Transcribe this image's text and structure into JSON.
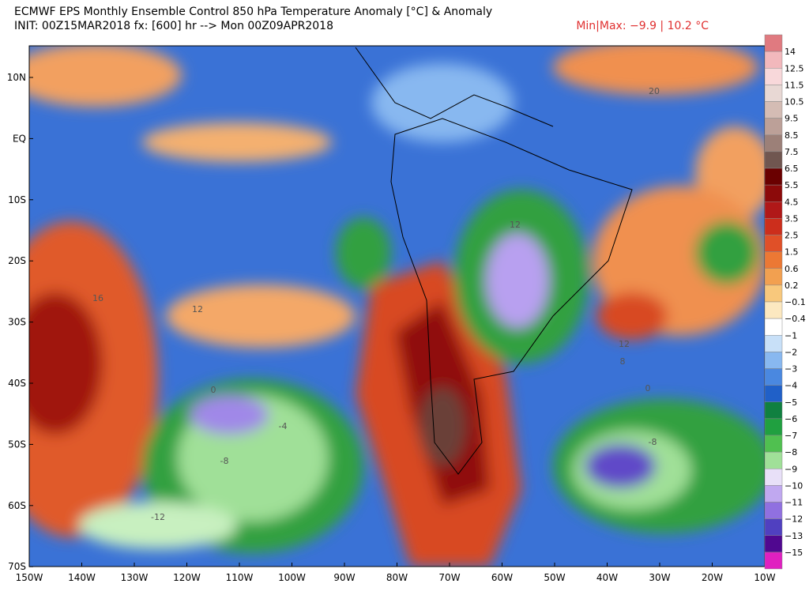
{
  "header": {
    "title": "ECMWF EPS Monthly Ensemble Control 850 hPa Temperature Anomaly [°C] & Anomaly",
    "init": "INIT: 00Z15MAR2018 fx: [600] hr --> Mon 00Z09APR2018",
    "minmax": "Min|Max: −9.9 | 10.2 °C"
  },
  "lat_labels": [
    "10N",
    "EQ",
    "10S",
    "20S",
    "30S",
    "40S",
    "50S",
    "60S",
    "70S"
  ],
  "lon_labels": [
    "150W",
    "140W",
    "130W",
    "120W",
    "110W",
    "100W",
    "90W",
    "80W",
    "70W",
    "60W",
    "50W",
    "40W",
    "30W",
    "20W",
    "10W"
  ],
  "contour_labels": [
    "20",
    "16",
    "12",
    "12",
    "12",
    "8",
    "0",
    "0",
    "-4",
    "-8",
    "-8",
    "-12"
  ],
  "colorbar": {
    "labels": [
      "14",
      "12.5",
      "11.5",
      "10.5",
      "9.5",
      "8.5",
      "7.5",
      "6.5",
      "5.5",
      "4.5",
      "3.5",
      "2.5",
      "1.5",
      "0.6",
      "0.2",
      "−0.1",
      "−0.4",
      "−1",
      "−2",
      "−3",
      "−4",
      "−5",
      "−6",
      "−7",
      "−8",
      "−9",
      "−10",
      "−11",
      "−12",
      "−13",
      "−15"
    ],
    "colors": [
      "#e07a80",
      "#f2b8bc",
      "#f8d8da",
      "#e8d8d4",
      "#d4bcb4",
      "#bca098",
      "#9c8078",
      "#705650",
      "#6a0000",
      "#8c0a0a",
      "#b01818",
      "#cc2e1c",
      "#e05028",
      "#ec7834",
      "#f2a050",
      "#f8c87c",
      "#fce8c0",
      "#ffffff",
      "#c8e0f8",
      "#88b8f0",
      "#4a88e0",
      "#2060c8",
      "#108040",
      "#20a040",
      "#50c050",
      "#a0e098",
      "#e8e0f8",
      "#c0a8f0",
      "#9070e0",
      "#5040c0",
      "#500890",
      "#e020c0"
    ]
  }
}
